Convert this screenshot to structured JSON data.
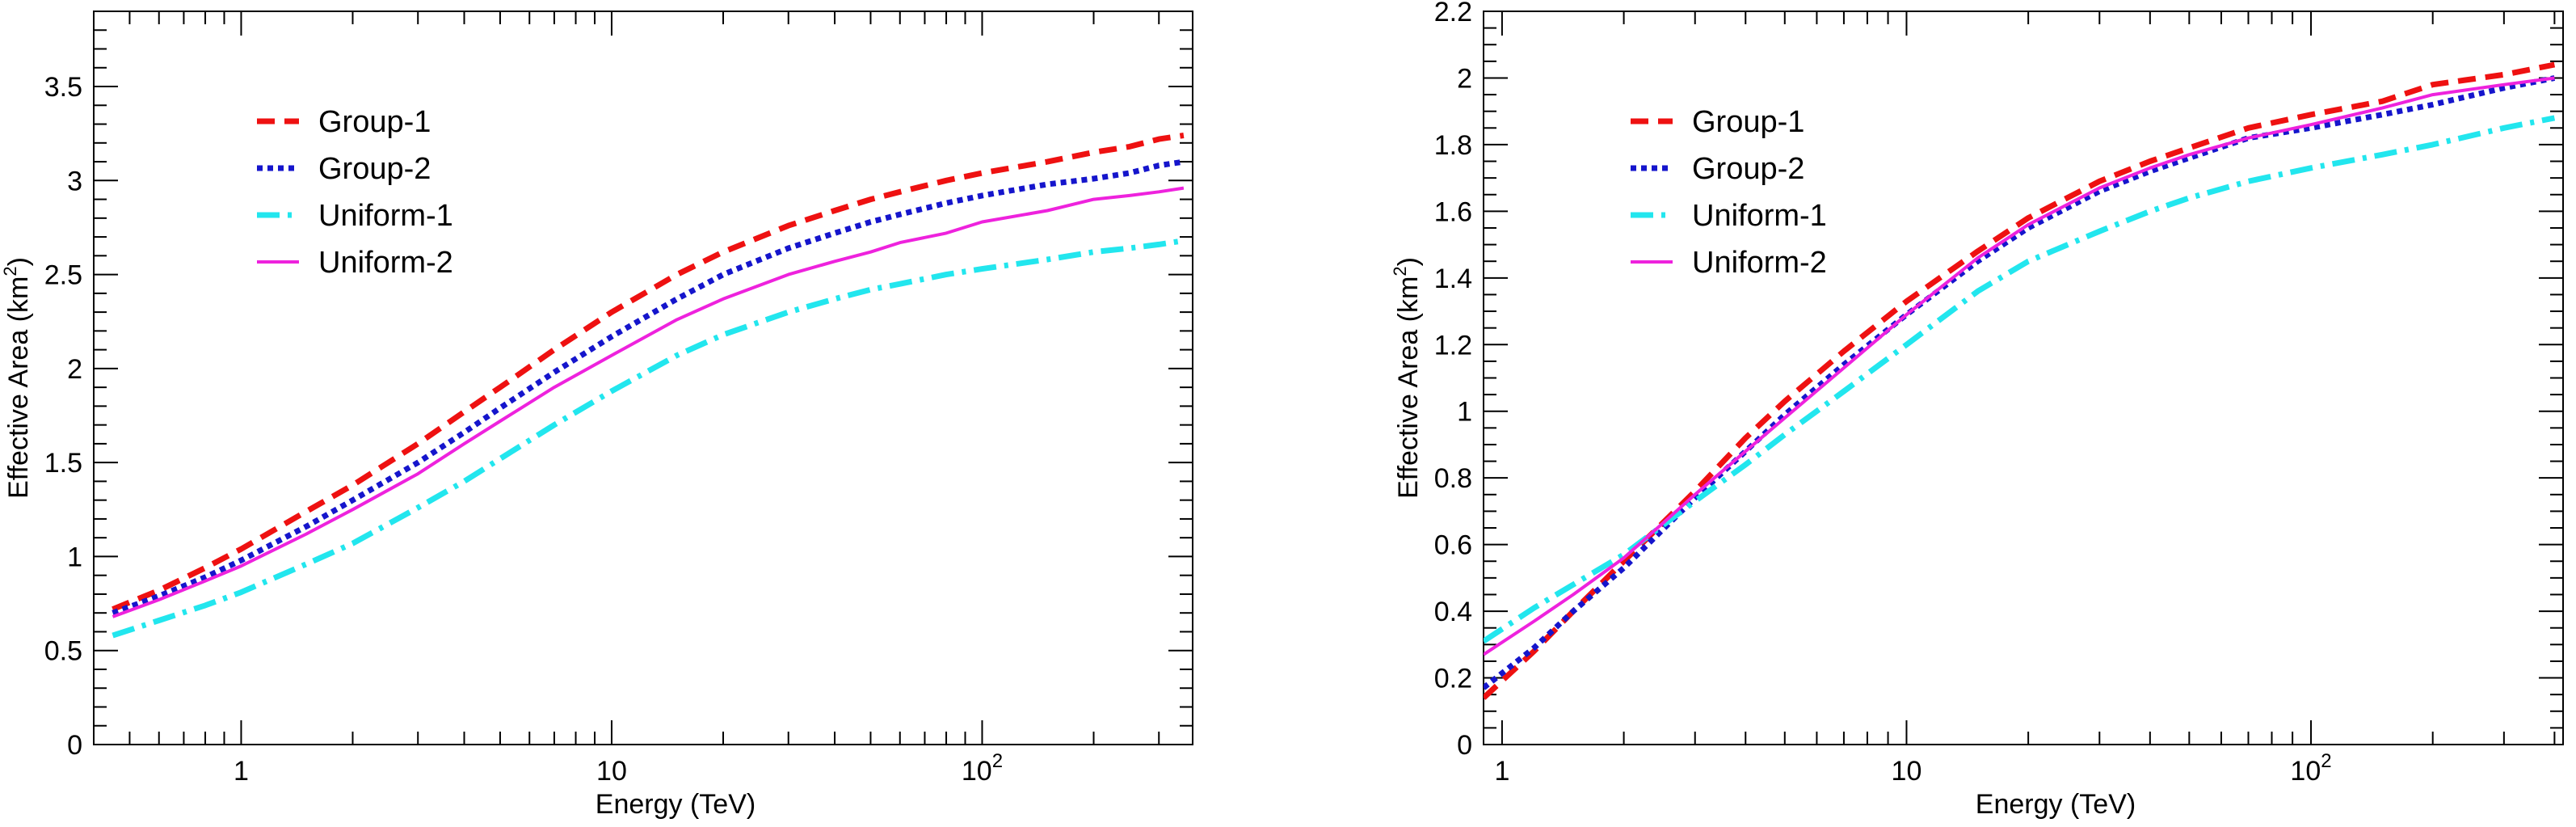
{
  "chart_data": [
    {
      "type": "line",
      "xscale": "log",
      "xlabel": "Energy (TeV)",
      "ylabel": "Effective Area (km",
      "ylabel_sup": "2",
      "ylabel_suffix": ")",
      "xlim": [
        0.4,
        370
      ],
      "ylim": [
        0,
        3.9
      ],
      "x_ticks": [
        {
          "value": 1,
          "label": "1"
        },
        {
          "value": 10,
          "label": "10"
        },
        {
          "value": 100,
          "label": "10",
          "sup": "2"
        }
      ],
      "y_ticks": [
        {
          "value": 0,
          "label": "0"
        },
        {
          "value": 0.5,
          "label": "0.5"
        },
        {
          "value": 1,
          "label": "1"
        },
        {
          "value": 1.5,
          "label": "1.5"
        },
        {
          "value": 2,
          "label": "2"
        },
        {
          "value": 2.5,
          "label": "2.5"
        },
        {
          "value": 3,
          "label": "3"
        },
        {
          "value": 3.5,
          "label": "3.5"
        }
      ],
      "legend_position": "top-left",
      "series": [
        {
          "name": "Group-1",
          "color": "#ee1111",
          "style": "dashed",
          "x": [
            0.45,
            0.6,
            0.8,
            1.0,
            1.5,
            2,
            3,
            4,
            5,
            7,
            10,
            15,
            20,
            30,
            40,
            50,
            60,
            80,
            100,
            150,
            200,
            250,
            300,
            350
          ],
          "y": [
            0.72,
            0.82,
            0.94,
            1.04,
            1.24,
            1.38,
            1.6,
            1.77,
            1.9,
            2.1,
            2.3,
            2.5,
            2.62,
            2.76,
            2.84,
            2.9,
            2.94,
            3.0,
            3.04,
            3.1,
            3.15,
            3.18,
            3.22,
            3.24
          ]
        },
        {
          "name": "Group-2",
          "color": "#1515cc",
          "style": "dotted",
          "x": [
            0.45,
            0.6,
            0.8,
            1.0,
            1.5,
            2,
            3,
            4,
            5,
            7,
            10,
            15,
            20,
            30,
            40,
            50,
            60,
            80,
            100,
            150,
            200,
            250,
            300,
            350
          ],
          "y": [
            0.7,
            0.79,
            0.89,
            0.98,
            1.16,
            1.3,
            1.5,
            1.66,
            1.79,
            1.98,
            2.17,
            2.37,
            2.5,
            2.64,
            2.72,
            2.78,
            2.82,
            2.88,
            2.92,
            2.98,
            3.01,
            3.04,
            3.08,
            3.1
          ]
        },
        {
          "name": "Uniform-1",
          "color": "#22e6ee",
          "style": "dashdot",
          "x": [
            0.45,
            0.6,
            0.8,
            1.0,
            1.5,
            2,
            3,
            4,
            5,
            7,
            10,
            15,
            20,
            30,
            40,
            50,
            60,
            80,
            100,
            150,
            200,
            250,
            300,
            350
          ],
          "y": [
            0.58,
            0.66,
            0.74,
            0.81,
            0.96,
            1.07,
            1.26,
            1.4,
            1.52,
            1.7,
            1.88,
            2.07,
            2.18,
            2.3,
            2.37,
            2.42,
            2.45,
            2.5,
            2.53,
            2.58,
            2.62,
            2.64,
            2.66,
            2.68
          ]
        },
        {
          "name": "Uniform-2",
          "color": "#ee22dd",
          "style": "solid",
          "x": [
            0.45,
            0.6,
            0.8,
            1.0,
            1.5,
            2,
            3,
            4,
            5,
            7,
            10,
            15,
            20,
            30,
            40,
            50,
            60,
            80,
            100,
            150,
            200,
            250,
            300,
            350
          ],
          "y": [
            0.68,
            0.77,
            0.87,
            0.95,
            1.12,
            1.25,
            1.44,
            1.6,
            1.72,
            1.9,
            2.07,
            2.26,
            2.37,
            2.5,
            2.57,
            2.62,
            2.67,
            2.72,
            2.78,
            2.84,
            2.9,
            2.92,
            2.94,
            2.96
          ]
        }
      ]
    },
    {
      "type": "line",
      "xscale": "log",
      "xlabel": "Energy (TeV)",
      "ylabel": "Effective Area (km",
      "ylabel_sup": "2",
      "ylabel_suffix": ")",
      "xlim": [
        0.9,
        420
      ],
      "ylim": [
        0,
        2.2
      ],
      "x_ticks": [
        {
          "value": 1,
          "label": "1"
        },
        {
          "value": 10,
          "label": "10"
        },
        {
          "value": 100,
          "label": "10",
          "sup": "2"
        }
      ],
      "y_ticks": [
        {
          "value": 0,
          "label": "0"
        },
        {
          "value": 0.2,
          "label": "0.2"
        },
        {
          "value": 0.4,
          "label": "0.4"
        },
        {
          "value": 0.6,
          "label": "0.6"
        },
        {
          "value": 0.8,
          "label": "0.8"
        },
        {
          "value": 1.0,
          "label": "1"
        },
        {
          "value": 1.2,
          "label": "1.2"
        },
        {
          "value": 1.4,
          "label": "1.4"
        },
        {
          "value": 1.6,
          "label": "1.6"
        },
        {
          "value": 1.8,
          "label": "1.8"
        },
        {
          "value": 2.0,
          "label": "2"
        },
        {
          "value": 2.2,
          "label": "2.2"
        }
      ],
      "legend_position": "top-left",
      "series": [
        {
          "name": "Group-1",
          "color": "#ee1111",
          "style": "dashed",
          "x": [
            0.9,
            1.2,
            1.5,
            2,
            3,
            4,
            5,
            7,
            10,
            15,
            20,
            30,
            40,
            50,
            70,
            100,
            150,
            200,
            300,
            400
          ],
          "y": [
            0.14,
            0.28,
            0.4,
            0.55,
            0.76,
            0.92,
            1.03,
            1.18,
            1.33,
            1.48,
            1.58,
            1.69,
            1.75,
            1.79,
            1.85,
            1.89,
            1.93,
            1.98,
            2.01,
            2.04
          ]
        },
        {
          "name": "Group-2",
          "color": "#1515cc",
          "style": "dotted",
          "x": [
            0.9,
            1.2,
            1.5,
            2,
            3,
            4,
            5,
            7,
            10,
            15,
            20,
            30,
            40,
            50,
            70,
            100,
            150,
            200,
            300,
            400
          ],
          "y": [
            0.17,
            0.29,
            0.4,
            0.53,
            0.74,
            0.88,
            0.99,
            1.14,
            1.29,
            1.45,
            1.55,
            1.66,
            1.72,
            1.76,
            1.82,
            1.85,
            1.89,
            1.92,
            1.97,
            2.0
          ]
        },
        {
          "name": "Uniform-1",
          "color": "#22e6ee",
          "style": "dashdot",
          "x": [
            0.9,
            1.2,
            1.5,
            2,
            3,
            4,
            5,
            7,
            10,
            15,
            20,
            30,
            40,
            50,
            70,
            100,
            150,
            200,
            300,
            400
          ],
          "y": [
            0.31,
            0.41,
            0.48,
            0.57,
            0.73,
            0.84,
            0.93,
            1.06,
            1.2,
            1.36,
            1.45,
            1.54,
            1.6,
            1.64,
            1.69,
            1.73,
            1.77,
            1.8,
            1.85,
            1.88
          ]
        },
        {
          "name": "Uniform-2",
          "color": "#ee22dd",
          "style": "solid",
          "x": [
            0.9,
            1.2,
            1.5,
            2,
            3,
            4,
            5,
            7,
            10,
            15,
            20,
            30,
            40,
            50,
            70,
            100,
            150,
            200,
            300,
            400
          ],
          "y": [
            0.27,
            0.37,
            0.45,
            0.56,
            0.75,
            0.88,
            0.98,
            1.13,
            1.29,
            1.46,
            1.56,
            1.67,
            1.73,
            1.77,
            1.82,
            1.86,
            1.91,
            1.95,
            1.98,
            2.0
          ]
        }
      ]
    }
  ]
}
